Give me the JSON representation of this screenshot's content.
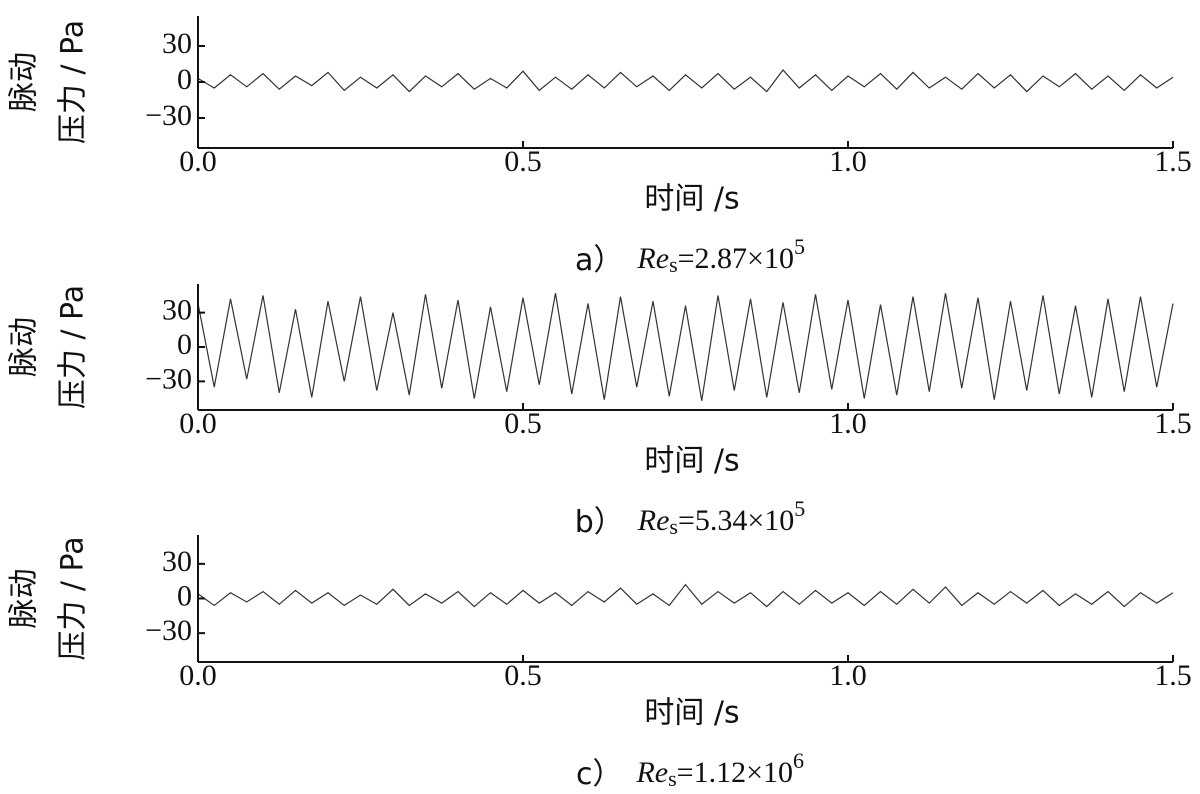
{
  "chart_data": [
    {
      "type": "line",
      "ylabel_top": "脉动",
      "ylabel_bottom": "压力 / Pa",
      "xlabel": "时间 /s",
      "caption": {
        "prefix": "a）",
        "symbol": "Re",
        "subscript": "s",
        "mantissa": "=2.87×10",
        "exponent": "5"
      },
      "xlim": [
        0,
        1.5
      ],
      "ylim": [
        -55,
        55
      ],
      "xticks": [
        {
          "value": 0,
          "label": "0.0"
        },
        {
          "value": 0.5,
          "label": "0.5"
        },
        {
          "value": 1,
          "label": "1.0"
        },
        {
          "value": 1.5,
          "label": "1.5"
        }
      ],
      "yticks": [
        30,
        0,
        {
          "value": -30,
          "label": "−30"
        }
      ],
      "x": [
        0,
        0.025,
        0.05,
        0.075,
        0.1,
        0.125,
        0.15,
        0.175,
        0.2,
        0.225,
        0.25,
        0.275,
        0.3,
        0.325,
        0.35,
        0.375,
        0.4,
        0.425,
        0.45,
        0.475,
        0.5,
        0.525,
        0.55,
        0.575,
        0.6,
        0.625,
        0.65,
        0.675,
        0.7,
        0.725,
        0.75,
        0.775,
        0.8,
        0.825,
        0.85,
        0.875,
        0.9,
        0.925,
        0.95,
        0.975,
        1,
        1.025,
        1.05,
        1.075,
        1.1,
        1.125,
        1.15,
        1.175,
        1.2,
        1.225,
        1.25,
        1.275,
        1.3,
        1.325,
        1.35,
        1.375,
        1.4,
        1.425,
        1.45,
        1.475,
        1.5
      ],
      "series": [
        {
          "color": "#333333",
          "values": [
            3,
            -5,
            6,
            -4,
            7,
            -6,
            5,
            -3,
            8,
            -7,
            4,
            -5,
            6,
            -8,
            5,
            -4,
            7,
            -6,
            3,
            -5,
            9,
            -7,
            4,
            -6,
            6,
            -5,
            8,
            -4,
            5,
            -7,
            6,
            -5,
            7,
            -6,
            4,
            -8,
            10,
            -5,
            6,
            -7,
            5,
            -4,
            7,
            -6,
            8,
            -5,
            4,
            -6,
            7,
            -5,
            6,
            -8,
            5,
            -4,
            7,
            -6,
            5,
            -7,
            6,
            -5,
            4
          ]
        }
      ]
    },
    {
      "type": "line",
      "ylabel_top": "脉动",
      "ylabel_bottom": "压力 / Pa",
      "xlabel": "时间 /s",
      "caption": {
        "prefix": "b）",
        "symbol": "Re",
        "subscript": "s",
        "mantissa": "=5.34×10",
        "exponent": "5"
      },
      "xlim": [
        0,
        1.5
      ],
      "ylim": [
        -55,
        55
      ],
      "xticks": [
        {
          "value": 0,
          "label": "0.0"
        },
        {
          "value": 0.5,
          "label": "0.5"
        },
        {
          "value": 1,
          "label": "1.0"
        },
        {
          "value": 1.5,
          "label": "1.5"
        }
      ],
      "yticks": [
        30,
        0,
        {
          "value": -30,
          "label": "−30"
        }
      ],
      "x": [
        0,
        0.025,
        0.05,
        0.075,
        0.1,
        0.125,
        0.15,
        0.175,
        0.2,
        0.225,
        0.25,
        0.275,
        0.3,
        0.325,
        0.35,
        0.375,
        0.4,
        0.425,
        0.45,
        0.475,
        0.5,
        0.525,
        0.55,
        0.575,
        0.6,
        0.625,
        0.65,
        0.675,
        0.7,
        0.725,
        0.75,
        0.775,
        0.8,
        0.825,
        0.85,
        0.875,
        0.9,
        0.925,
        0.95,
        0.975,
        1,
        1.025,
        1.05,
        1.075,
        1.1,
        1.125,
        1.15,
        1.175,
        1.2,
        1.225,
        1.25,
        1.275,
        1.3,
        1.325,
        1.35,
        1.375,
        1.4,
        1.425,
        1.45,
        1.475,
        1.5
      ],
      "series": [
        {
          "color": "#333333",
          "values": [
            38,
            -35,
            42,
            -28,
            45,
            -40,
            33,
            -44,
            40,
            -30,
            44,
            -38,
            30,
            -42,
            46,
            -36,
            41,
            -45,
            35,
            -39,
            43,
            -33,
            47,
            -41,
            38,
            -46,
            44,
            -35,
            40,
            -43,
            36,
            -47,
            45,
            -38,
            42,
            -44,
            39,
            -40,
            46,
            -37,
            41,
            -45,
            37,
            -42,
            44,
            -39,
            47,
            -36,
            43,
            -46,
            40,
            -38,
            45,
            -41,
            36,
            -44,
            42,
            -39,
            44,
            -35,
            38
          ]
        }
      ]
    },
    {
      "type": "line",
      "ylabel_top": "脉动",
      "ylabel_bottom": "压力 / Pa",
      "xlabel": "时间 /s",
      "caption": {
        "prefix": "c）",
        "symbol": "Re",
        "subscript": "s",
        "mantissa": "=1.12×10",
        "exponent": "6"
      },
      "xlim": [
        0,
        1.5
      ],
      "ylim": [
        -55,
        55
      ],
      "xticks": [
        {
          "value": 0,
          "label": "0.0"
        },
        {
          "value": 0.5,
          "label": "0.5"
        },
        {
          "value": 1,
          "label": "1.0"
        },
        {
          "value": 1.5,
          "label": "1.5"
        }
      ],
      "yticks": [
        30,
        0,
        {
          "value": -30,
          "label": "−30"
        }
      ],
      "x": [
        0,
        0.025,
        0.05,
        0.075,
        0.1,
        0.125,
        0.15,
        0.175,
        0.2,
        0.225,
        0.25,
        0.275,
        0.3,
        0.325,
        0.35,
        0.375,
        0.4,
        0.425,
        0.45,
        0.475,
        0.5,
        0.525,
        0.55,
        0.575,
        0.6,
        0.625,
        0.65,
        0.675,
        0.7,
        0.725,
        0.75,
        0.775,
        0.8,
        0.825,
        0.85,
        0.875,
        0.9,
        0.925,
        0.95,
        0.975,
        1,
        1.025,
        1.05,
        1.075,
        1.1,
        1.125,
        1.15,
        1.175,
        1.2,
        1.225,
        1.25,
        1.275,
        1.3,
        1.325,
        1.35,
        1.375,
        1.4,
        1.425,
        1.45,
        1.475,
        1.5
      ],
      "series": [
        {
          "color": "#333333",
          "values": [
            4,
            -6,
            5,
            -3,
            6,
            -5,
            7,
            -4,
            5,
            -6,
            3,
            -5,
            8,
            -6,
            4,
            -4,
            6,
            -7,
            5,
            -5,
            7,
            -4,
            5,
            -6,
            6,
            -3,
            9,
            -5,
            4,
            -6,
            12,
            -5,
            6,
            -4,
            5,
            -7,
            6,
            -5,
            7,
            -4,
            5,
            -6,
            6,
            -5,
            8,
            -4,
            10,
            -6,
            5,
            -5,
            6,
            -4,
            7,
            -6,
            4,
            -5,
            6,
            -7,
            5,
            -4,
            5
          ]
        }
      ]
    }
  ]
}
